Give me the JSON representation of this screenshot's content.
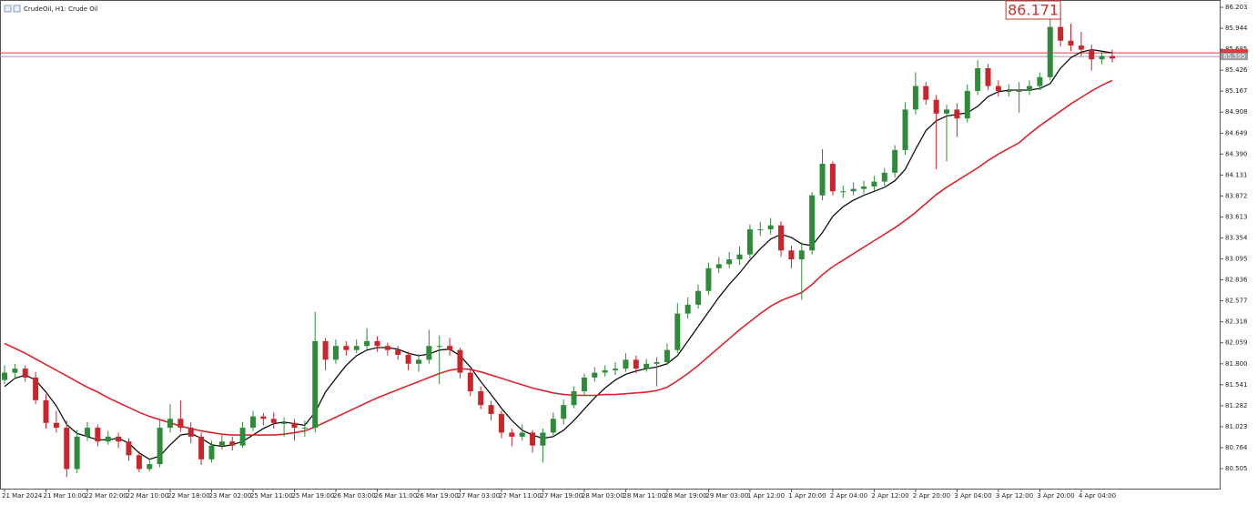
{
  "chart_data": {
    "type": "candlestick",
    "title": "CrudeOil, H1:  Crude Oil",
    "annotation": "86.171",
    "up_color": "#2e8b3a",
    "down_color": "#c8262c",
    "categories": [
      "21 Mar 2024",
      null,
      null,
      null,
      "21 Mar 10:00",
      null,
      null,
      null,
      "22 Mar 02:00",
      null,
      null,
      null,
      "22 Mar 10:00",
      null,
      null,
      null,
      "22 Mar 18:00",
      null,
      null,
      null,
      "23 Mar 02:00",
      null,
      null,
      null,
      "25 Mar 11:00",
      null,
      null,
      null,
      "25 Mar 19:00",
      null,
      null,
      null,
      "26 Mar 03:00",
      null,
      null,
      null,
      "26 Mar 11:00",
      null,
      null,
      null,
      "26 Mar 19:00",
      null,
      null,
      null,
      "27 Mar 03:00",
      null,
      null,
      null,
      "27 Mar 11:00",
      null,
      null,
      null,
      "27 Mar 19:00",
      null,
      null,
      null,
      "28 Mar 03:00",
      null,
      null,
      null,
      "28 Mar 11:00",
      null,
      null,
      null,
      "28 Mar 19:00",
      null,
      null,
      null,
      "29 Mar 03:00",
      null,
      null,
      null,
      "1 Apr 12:00",
      null,
      null,
      null,
      "1 Apr 20:00",
      null,
      null,
      null,
      "2 Apr 04:00",
      null,
      null,
      null,
      "2 Apr 12:00",
      null,
      null,
      null,
      "2 Apr 20:00",
      null,
      null,
      null,
      "3 Apr 04:00",
      null,
      null,
      null,
      "3 Apr 12:00",
      null,
      null,
      null,
      "3 Apr 20:00",
      null,
      null,
      null,
      "4 Apr 04:00",
      null,
      null,
      null
    ],
    "ohlc": [
      [
        81.6,
        81.78,
        81.55,
        81.69
      ],
      [
        81.69,
        81.8,
        81.62,
        81.74
      ],
      [
        81.74,
        81.78,
        81.58,
        81.63
      ],
      [
        81.63,
        81.7,
        81.3,
        81.35
      ],
      [
        81.35,
        81.42,
        81.0,
        81.07
      ],
      [
        81.07,
        81.22,
        80.95,
        81.01
      ],
      [
        81.01,
        81.1,
        80.4,
        80.5
      ],
      [
        80.5,
        80.98,
        80.45,
        80.9
      ],
      [
        80.9,
        81.08,
        80.85,
        81.01
      ],
      [
        81.01,
        81.05,
        80.78,
        80.84
      ],
      [
        80.84,
        80.97,
        80.8,
        80.9
      ],
      [
        80.9,
        80.95,
        80.76,
        80.84
      ],
      [
        80.84,
        80.88,
        80.6,
        80.67
      ],
      [
        80.67,
        80.72,
        80.46,
        80.5
      ],
      [
        80.5,
        80.62,
        80.47,
        80.56
      ],
      [
        80.56,
        81.12,
        80.52,
        81.01
      ],
      [
        81.01,
        81.3,
        80.95,
        81.12
      ],
      [
        81.12,
        81.35,
        80.96,
        81.01
      ],
      [
        81.01,
        81.08,
        80.82,
        80.9
      ],
      [
        80.9,
        80.95,
        80.55,
        80.62
      ],
      [
        80.62,
        80.85,
        80.58,
        80.79
      ],
      [
        80.79,
        80.92,
        80.74,
        80.84
      ],
      [
        80.84,
        80.9,
        80.73,
        80.79
      ],
      [
        80.79,
        81.08,
        80.76,
        81.01
      ],
      [
        81.01,
        81.22,
        80.97,
        81.15
      ],
      [
        81.15,
        81.19,
        81.04,
        81.12
      ],
      [
        81.12,
        81.2,
        81.0,
        81.07
      ],
      [
        81.07,
        81.14,
        80.9,
        81.07
      ],
      [
        81.07,
        81.12,
        80.85,
        81.01
      ],
      [
        81.01,
        81.1,
        80.9,
        81.01
      ],
      [
        81.01,
        82.44,
        80.95,
        82.08
      ],
      [
        82.08,
        82.12,
        81.72,
        81.85
      ],
      [
        81.85,
        82.1,
        81.8,
        82.02
      ],
      [
        82.02,
        82.08,
        81.9,
        81.97
      ],
      [
        81.97,
        82.1,
        81.93,
        82.02
      ],
      [
        82.02,
        82.24,
        81.98,
        82.08
      ],
      [
        82.08,
        82.14,
        81.95,
        82.02
      ],
      [
        82.02,
        82.06,
        81.9,
        81.97
      ],
      [
        81.97,
        82.02,
        81.85,
        81.91
      ],
      [
        81.91,
        81.95,
        81.72,
        81.8
      ],
      [
        81.8,
        81.92,
        81.7,
        81.85
      ],
      [
        81.85,
        82.22,
        81.8,
        82.02
      ],
      [
        82.02,
        82.15,
        81.55,
        82.02
      ],
      [
        82.02,
        82.12,
        81.9,
        81.97
      ],
      [
        81.97,
        82.0,
        81.62,
        81.69
      ],
      [
        81.69,
        81.73,
        81.4,
        81.46
      ],
      [
        81.46,
        81.52,
        81.24,
        81.29
      ],
      [
        81.29,
        81.34,
        81.1,
        81.18
      ],
      [
        81.18,
        81.22,
        80.88,
        80.95
      ],
      [
        80.95,
        81.0,
        80.78,
        80.9
      ],
      [
        80.9,
        81.05,
        80.85,
        80.95
      ],
      [
        80.95,
        80.98,
        80.7,
        80.79
      ],
      [
        80.79,
        81.0,
        80.58,
        80.95
      ],
      [
        80.95,
        81.2,
        80.9,
        81.12
      ],
      [
        81.12,
        81.36,
        81.05,
        81.29
      ],
      [
        81.29,
        81.52,
        81.25,
        81.46
      ],
      [
        81.46,
        81.68,
        81.4,
        81.63
      ],
      [
        81.63,
        81.76,
        81.58,
        81.69
      ],
      [
        81.69,
        81.78,
        81.64,
        81.72
      ],
      [
        81.72,
        81.82,
        81.66,
        81.74
      ],
      [
        81.74,
        81.93,
        81.7,
        81.85
      ],
      [
        81.85,
        81.9,
        81.68,
        81.74
      ],
      [
        81.74,
        81.86,
        81.7,
        81.8
      ],
      [
        81.8,
        81.88,
        81.52,
        81.82
      ],
      [
        81.82,
        82.05,
        81.78,
        81.97
      ],
      [
        81.97,
        82.55,
        81.93,
        82.42
      ],
      [
        82.42,
        82.62,
        82.36,
        82.53
      ],
      [
        82.53,
        82.78,
        82.48,
        82.7
      ],
      [
        82.7,
        83.05,
        82.65,
        82.98
      ],
      [
        82.98,
        83.12,
        82.92,
        83.03
      ],
      [
        83.03,
        83.18,
        82.98,
        83.09
      ],
      [
        83.09,
        83.25,
        83.02,
        83.15
      ],
      [
        83.15,
        83.52,
        83.1,
        83.46
      ],
      [
        83.46,
        83.55,
        83.38,
        83.46
      ],
      [
        83.46,
        83.6,
        83.4,
        83.51
      ],
      [
        83.51,
        83.56,
        83.12,
        83.2
      ],
      [
        83.2,
        83.26,
        82.98,
        83.09
      ],
      [
        83.09,
        83.3,
        82.59,
        83.2
      ],
      [
        83.2,
        83.92,
        83.15,
        83.88
      ],
      [
        83.88,
        84.45,
        83.82,
        84.27
      ],
      [
        84.27,
        84.3,
        83.88,
        83.93
      ],
      [
        83.93,
        84.0,
        83.85,
        83.93
      ],
      [
        83.93,
        84.04,
        83.88,
        83.96
      ],
      [
        83.96,
        84.06,
        83.9,
        83.99
      ],
      [
        83.99,
        84.12,
        83.94,
        84.05
      ],
      [
        84.05,
        84.22,
        84.0,
        84.16
      ],
      [
        84.16,
        84.5,
        84.1,
        84.44
      ],
      [
        84.44,
        85.03,
        84.38,
        84.94
      ],
      [
        84.94,
        85.4,
        84.88,
        85.23
      ],
      [
        85.23,
        85.28,
        85.0,
        85.06
      ],
      [
        85.06,
        85.12,
        84.2,
        84.89
      ],
      [
        84.89,
        85.0,
        84.3,
        84.94
      ],
      [
        84.94,
        85.02,
        84.6,
        84.83
      ],
      [
        84.83,
        85.25,
        84.78,
        85.17
      ],
      [
        85.17,
        85.55,
        85.12,
        85.45
      ],
      [
        85.45,
        85.5,
        85.18,
        85.23
      ],
      [
        85.23,
        85.3,
        85.1,
        85.17
      ],
      [
        85.17,
        85.25,
        85.1,
        85.17
      ],
      [
        85.17,
        85.28,
        84.9,
        85.17
      ],
      [
        85.17,
        85.3,
        85.12,
        85.23
      ],
      [
        85.23,
        85.4,
        85.18,
        85.34
      ],
      [
        85.34,
        86.1,
        85.3,
        85.96
      ],
      [
        85.96,
        86.17,
        85.72,
        85.79
      ],
      [
        85.79,
        86.0,
        85.66,
        85.73
      ],
      [
        85.73,
        85.9,
        85.6,
        85.68
      ],
      [
        85.68,
        85.74,
        85.42,
        85.56
      ],
      [
        85.56,
        85.65,
        85.5,
        85.6
      ],
      [
        85.6,
        85.68,
        85.52,
        85.57
      ]
    ],
    "series": [
      {
        "color": "#111111",
        "values": [
          81.52,
          81.62,
          81.66,
          81.6,
          81.45,
          81.28,
          81.05,
          80.94,
          80.9,
          80.86,
          80.86,
          80.88,
          80.82,
          80.7,
          80.62,
          80.66,
          80.8,
          80.92,
          80.94,
          80.88,
          80.8,
          80.78,
          80.8,
          80.84,
          80.92,
          81.0,
          81.06,
          81.08,
          81.06,
          81.04,
          81.2,
          81.45,
          81.62,
          81.78,
          81.9,
          81.97,
          82.0,
          82.0,
          81.98,
          81.93,
          81.9,
          81.92,
          81.97,
          81.98,
          81.9,
          81.76,
          81.58,
          81.42,
          81.25,
          81.1,
          80.98,
          80.92,
          80.88,
          80.9,
          80.98,
          81.1,
          81.24,
          81.38,
          81.5,
          81.6,
          81.67,
          81.71,
          81.74,
          81.76,
          81.8,
          81.9,
          82.08,
          82.26,
          82.44,
          82.62,
          82.78,
          82.92,
          83.08,
          83.22,
          83.34,
          83.4,
          83.36,
          83.28,
          83.26,
          83.42,
          83.62,
          83.74,
          83.82,
          83.88,
          83.93,
          83.98,
          84.06,
          84.2,
          84.45,
          84.68,
          84.8,
          84.86,
          84.88,
          84.9,
          84.98,
          85.1,
          85.16,
          85.18,
          85.18,
          85.18,
          85.2,
          85.26,
          85.45,
          85.58,
          85.65,
          85.68,
          85.66,
          85.64
        ]
      },
      {
        "color": "#e0242b",
        "values": [
          82.05,
          81.99,
          81.93,
          81.86,
          81.79,
          81.72,
          81.65,
          81.58,
          81.51,
          81.45,
          81.38,
          81.32,
          81.26,
          81.2,
          81.15,
          81.11,
          81.07,
          81.03,
          81.0,
          80.97,
          80.95,
          80.93,
          80.92,
          80.92,
          80.92,
          80.92,
          80.92,
          80.93,
          80.95,
          80.97,
          81.02,
          81.08,
          81.14,
          81.2,
          81.26,
          81.32,
          81.38,
          81.43,
          81.48,
          81.53,
          81.58,
          81.63,
          81.68,
          81.72,
          81.74,
          81.73,
          81.7,
          81.66,
          81.62,
          81.58,
          81.54,
          81.5,
          81.47,
          81.44,
          81.42,
          81.41,
          81.41,
          81.41,
          81.42,
          81.42,
          81.43,
          81.44,
          81.45,
          81.47,
          81.51,
          81.59,
          81.68,
          81.78,
          81.89,
          82.0,
          82.11,
          82.22,
          82.32,
          82.42,
          82.51,
          82.58,
          82.63,
          82.68,
          82.78,
          82.9,
          83.0,
          83.08,
          83.16,
          83.24,
          83.32,
          83.4,
          83.48,
          83.57,
          83.67,
          83.78,
          83.89,
          83.98,
          84.06,
          84.14,
          84.22,
          84.31,
          84.39,
          84.46,
          84.53,
          84.64,
          84.74,
          84.83,
          84.92,
          85.01,
          85.09,
          85.17,
          85.24,
          85.3
        ]
      }
    ],
    "price_lines": [
      {
        "value": 85.64,
        "color": "#e03a3a"
      },
      {
        "value": 85.595,
        "color": "#9aa0a6"
      }
    ],
    "ylim": [
      80.258,
      86.293
    ],
    "yticks": [
      86.203,
      85.944,
      85.685,
      85.426,
      85.167,
      84.908,
      84.649,
      {
        "value": 84.39,
        "label": "84.390"
      },
      84.131,
      83.872,
      83.613,
      83.354,
      83.095,
      82.836,
      82.577,
      82.318,
      82.059,
      {
        "value": 81.8,
        "label": "81.800"
      },
      81.541,
      81.282,
      81.023,
      80.764,
      80.505
    ]
  }
}
